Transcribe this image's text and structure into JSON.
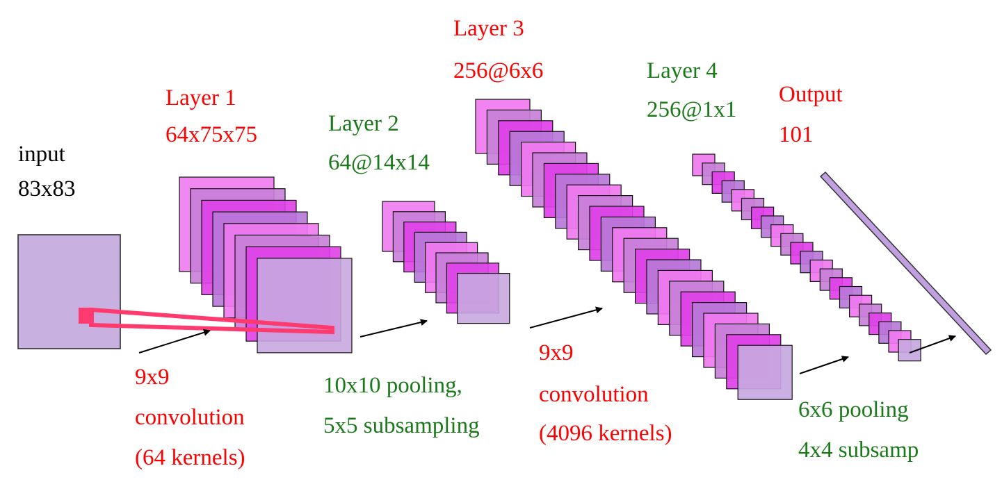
{
  "colors": {
    "red_text": "#ff0000",
    "green_text": "#1a7a1a",
    "black_text": "#000000",
    "input_fill": "#c8b0e0",
    "map_fills": [
      "#f07af0",
      "#c880d8",
      "#e040e8",
      "#b878d8"
    ],
    "map_stroke": "#111111",
    "kernel_stroke": "#ff3a6e",
    "output_fill": "#c0a0e0"
  },
  "labels": {
    "input_title": "input",
    "input_size": "83x83",
    "layer1_title": "Layer 1",
    "layer1_size": "64x75x75",
    "layer2_title": "Layer 2",
    "layer2_size": "64@14x14",
    "layer3_title": "Layer 3",
    "layer3_size": "256@6x6",
    "layer4_title": "Layer 4",
    "layer4_size": "256@1x1",
    "output_title": "Output",
    "output_size": "101",
    "conv1_line1": "9x9",
    "conv1_line2": "convolution",
    "conv1_line3": "(64 kernels)",
    "pool1_line1": "10x10 pooling,",
    "pool1_line2": "5x5 subsampling",
    "conv2_line1": "9x9",
    "conv2_line2": "convolution",
    "conv2_line3": "(4096 kernels)",
    "pool2_line1": "6x6 pooling",
    "pool2_line2": "4x4 subsamp"
  }
}
